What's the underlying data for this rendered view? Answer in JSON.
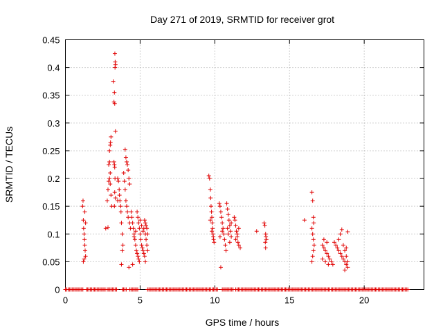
{
  "chart_data": {
    "type": "scatter",
    "title": "Day 271 of 2019, SRMTID for receiver grot",
    "xlabel": "GPS time / hours",
    "ylabel": "SRMTID / TECUs",
    "xlim": [
      0,
      24
    ],
    "ylim": [
      0,
      0.45
    ],
    "xticks": [
      0,
      5,
      10,
      15,
      20
    ],
    "xtick_labels": [
      "0",
      "5",
      "10",
      "15",
      "20"
    ],
    "yticks": [
      0,
      0.05,
      0.1,
      0.15,
      0.2,
      0.25,
      0.3,
      0.35,
      0.4,
      0.45
    ],
    "ytick_labels": [
      "0",
      "0.05",
      "0.1",
      "0.15",
      "0.2",
      "0.25",
      "0.3",
      "0.35",
      "0.4",
      "0.45"
    ],
    "grid": true,
    "marker": "+",
    "color": "#e00000",
    "series": [
      {
        "name": "SRMTID",
        "points": [
          [
            1.15,
            0.15
          ],
          [
            1.18,
            0.16
          ],
          [
            1.2,
            0.125
          ],
          [
            1.22,
            0.11
          ],
          [
            1.25,
            0.1
          ],
          [
            1.28,
            0.09
          ],
          [
            1.3,
            0.08
          ],
          [
            1.32,
            0.07
          ],
          [
            1.35,
            0.06
          ],
          [
            1.2,
            0.05
          ],
          [
            1.25,
            0.055
          ],
          [
            1.3,
            0.14
          ],
          [
            1.35,
            0.12
          ],
          [
            2.7,
            0.11
          ],
          [
            2.8,
            0.16
          ],
          [
            2.85,
            0.18
          ],
          [
            2.9,
            0.195
          ],
          [
            2.95,
            0.2
          ],
          [
            3.0,
            0.21
          ],
          [
            2.9,
            0.225
          ],
          [
            2.95,
            0.23
          ],
          [
            3.0,
            0.26
          ],
          [
            3.02,
            0.265
          ],
          [
            3.05,
            0.275
          ],
          [
            2.95,
            0.25
          ],
          [
            3.0,
            0.19
          ],
          [
            3.05,
            0.17
          ],
          [
            3.1,
            0.15
          ],
          [
            2.85,
            0.112
          ],
          [
            3.25,
            0.23
          ],
          [
            3.28,
            0.225
          ],
          [
            3.3,
            0.22
          ],
          [
            3.32,
            0.2
          ],
          [
            3.35,
            0.285
          ],
          [
            3.3,
            0.335
          ],
          [
            3.25,
            0.338
          ],
          [
            3.28,
            0.355
          ],
          [
            3.32,
            0.4
          ],
          [
            3.35,
            0.405
          ],
          [
            3.33,
            0.41
          ],
          [
            3.31,
            0.425
          ],
          [
            3.2,
            0.375
          ],
          [
            3.3,
            0.175
          ],
          [
            3.35,
            0.165
          ],
          [
            3.28,
            0.15
          ],
          [
            3.5,
            0.2
          ],
          [
            3.55,
            0.195
          ],
          [
            3.6,
            0.18
          ],
          [
            3.62,
            0.17
          ],
          [
            3.65,
            0.16
          ],
          [
            3.7,
            0.15
          ],
          [
            3.72,
            0.14
          ],
          [
            3.75,
            0.12
          ],
          [
            3.8,
            0.1
          ],
          [
            3.85,
            0.08
          ],
          [
            3.8,
            0.07
          ],
          [
            3.75,
            0.045
          ],
          [
            3.9,
            0.21
          ],
          [
            3.95,
            0.195
          ],
          [
            3.5,
            0.16
          ],
          [
            4.0,
            0.252
          ],
          [
            4.05,
            0.238
          ],
          [
            4.1,
            0.23
          ],
          [
            4.15,
            0.225
          ],
          [
            4.2,
            0.215
          ],
          [
            4.25,
            0.2
          ],
          [
            4.3,
            0.19
          ],
          [
            4.0,
            0.18
          ],
          [
            4.05,
            0.16
          ],
          [
            4.1,
            0.15
          ],
          [
            4.15,
            0.14
          ],
          [
            4.2,
            0.13
          ],
          [
            4.3,
            0.12
          ],
          [
            4.35,
            0.11
          ],
          [
            4.25,
            0.04
          ],
          [
            4.4,
            0.14
          ],
          [
            4.45,
            0.13
          ],
          [
            4.5,
            0.12
          ],
          [
            4.55,
            0.11
          ],
          [
            4.6,
            0.1
          ],
          [
            4.65,
            0.09
          ],
          [
            4.7,
            0.08
          ],
          [
            4.75,
            0.07
          ],
          [
            4.8,
            0.065
          ],
          [
            4.85,
            0.06
          ],
          [
            4.9,
            0.055
          ],
          [
            4.95,
            0.05
          ],
          [
            4.5,
            0.045
          ],
          [
            4.6,
            0.095
          ],
          [
            4.7,
            0.105
          ],
          [
            4.8,
            0.14
          ],
          [
            4.85,
            0.13
          ],
          [
            4.9,
            0.12
          ],
          [
            4.95,
            0.11
          ],
          [
            5.0,
            0.1
          ],
          [
            5.05,
            0.09
          ],
          [
            5.1,
            0.08
          ],
          [
            5.15,
            0.075
          ],
          [
            5.2,
            0.07
          ],
          [
            5.25,
            0.065
          ],
          [
            5.3,
            0.06
          ],
          [
            5.35,
            0.05
          ],
          [
            5.0,
            0.125
          ],
          [
            5.1,
            0.115
          ],
          [
            5.2,
            0.105
          ],
          [
            5.3,
            0.125
          ],
          [
            5.35,
            0.12
          ],
          [
            5.4,
            0.115
          ],
          [
            5.45,
            0.11
          ],
          [
            5.5,
            0.1
          ],
          [
            5.4,
            0.09
          ],
          [
            5.45,
            0.08
          ],
          [
            5.5,
            0.07
          ],
          [
            5.35,
            0.1
          ],
          [
            5.25,
            0.11
          ],
          [
            9.6,
            0.205
          ],
          [
            9.65,
            0.2
          ],
          [
            9.7,
            0.18
          ],
          [
            9.72,
            0.165
          ],
          [
            9.75,
            0.15
          ],
          [
            9.78,
            0.14
          ],
          [
            9.8,
            0.13
          ],
          [
            9.82,
            0.12
          ],
          [
            9.85,
            0.11
          ],
          [
            9.88,
            0.1
          ],
          [
            9.9,
            0.095
          ],
          [
            9.92,
            0.09
          ],
          [
            9.95,
            0.085
          ],
          [
            9.7,
            0.125
          ],
          [
            9.8,
            0.105
          ],
          [
            10.3,
            0.155
          ],
          [
            10.35,
            0.15
          ],
          [
            10.4,
            0.14
          ],
          [
            10.45,
            0.13
          ],
          [
            10.5,
            0.12
          ],
          [
            10.55,
            0.11
          ],
          [
            10.6,
            0.1
          ],
          [
            10.65,
            0.09
          ],
          [
            10.7,
            0.08
          ],
          [
            10.75,
            0.07
          ],
          [
            10.4,
            0.04
          ],
          [
            10.35,
            0.095
          ],
          [
            10.5,
            0.105
          ],
          [
            10.8,
            0.155
          ],
          [
            10.85,
            0.145
          ],
          [
            10.9,
            0.135
          ],
          [
            10.95,
            0.125
          ],
          [
            11.0,
            0.115
          ],
          [
            11.05,
            0.105
          ],
          [
            11.1,
            0.095
          ],
          [
            11.0,
            0.085
          ],
          [
            10.9,
            0.1
          ],
          [
            10.85,
            0.11
          ],
          [
            11.1,
            0.12
          ],
          [
            11.3,
            0.13
          ],
          [
            11.35,
            0.125
          ],
          [
            11.4,
            0.115
          ],
          [
            11.45,
            0.105
          ],
          [
            11.5,
            0.095
          ],
          [
            11.55,
            0.085
          ],
          [
            11.6,
            0.08
          ],
          [
            11.7,
            0.075
          ],
          [
            11.4,
            0.09
          ],
          [
            11.5,
            0.1
          ],
          [
            11.6,
            0.11
          ],
          [
            12.8,
            0.105
          ],
          [
            13.3,
            0.12
          ],
          [
            13.35,
            0.115
          ],
          [
            13.4,
            0.1
          ],
          [
            13.42,
            0.095
          ],
          [
            13.45,
            0.09
          ],
          [
            13.38,
            0.085
          ],
          [
            13.4,
            0.075
          ],
          [
            16.0,
            0.125
          ],
          [
            16.5,
            0.175
          ],
          [
            16.55,
            0.16
          ],
          [
            16.6,
            0.13
          ],
          [
            16.62,
            0.12
          ],
          [
            16.5,
            0.11
          ],
          [
            16.55,
            0.1
          ],
          [
            16.6,
            0.09
          ],
          [
            16.65,
            0.08
          ],
          [
            16.6,
            0.07
          ],
          [
            16.55,
            0.06
          ],
          [
            16.5,
            0.05
          ],
          [
            17.2,
            0.08
          ],
          [
            17.3,
            0.075
          ],
          [
            17.4,
            0.07
          ],
          [
            17.5,
            0.065
          ],
          [
            17.6,
            0.06
          ],
          [
            17.7,
            0.055
          ],
          [
            17.8,
            0.05
          ],
          [
            17.9,
            0.045
          ],
          [
            17.3,
            0.09
          ],
          [
            17.5,
            0.085
          ],
          [
            17.2,
            0.055
          ],
          [
            17.4,
            0.05
          ],
          [
            17.6,
            0.045
          ],
          [
            18.0,
            0.085
          ],
          [
            18.1,
            0.08
          ],
          [
            18.2,
            0.075
          ],
          [
            18.3,
            0.07
          ],
          [
            18.4,
            0.065
          ],
          [
            18.5,
            0.06
          ],
          [
            18.6,
            0.055
          ],
          [
            18.7,
            0.05
          ],
          [
            18.8,
            0.045
          ],
          [
            18.9,
            0.04
          ],
          [
            18.3,
            0.09
          ],
          [
            18.4,
            0.1
          ],
          [
            18.5,
            0.108
          ],
          [
            18.6,
            0.08
          ],
          [
            18.7,
            0.035
          ],
          [
            18.8,
            0.06
          ],
          [
            18.9,
            0.104
          ],
          [
            18.7,
            0.07
          ],
          [
            18.8,
            0.075
          ],
          [
            18.9,
            0.05
          ]
        ],
        "zero_segments": [
          [
            0.0,
            1.2
          ],
          [
            1.4,
            2.7
          ],
          [
            2.8,
            3.5
          ],
          [
            3.8,
            4.1
          ],
          [
            4.3,
            4.9
          ],
          [
            5.5,
            10.25
          ],
          [
            10.5,
            11.3
          ],
          [
            11.4,
            23.0
          ]
        ]
      }
    ]
  }
}
